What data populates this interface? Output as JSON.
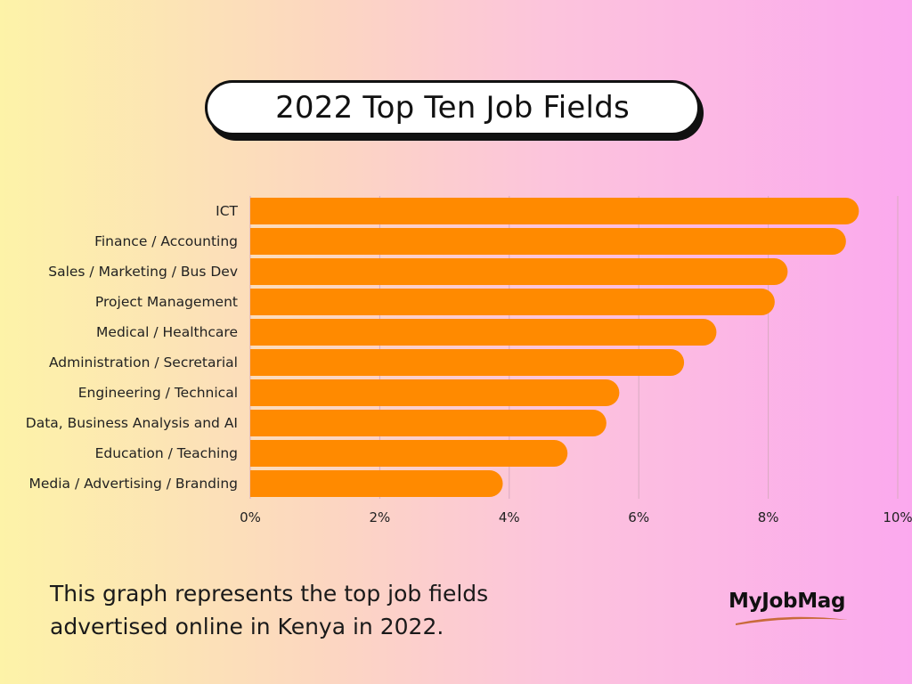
{
  "title": "2022 Top Ten Job Fields",
  "caption": "This graph represents the top job fields advertised online in Kenya in 2022.",
  "logo": {
    "text": "MyJobMag",
    "swoosh_color": "#c86a3a"
  },
  "colors": {
    "bar": "#ff8a00",
    "grid": "#d9aac0",
    "text": "#222222"
  },
  "chart_data": {
    "type": "bar",
    "orientation": "horizontal",
    "categories": [
      "ICT",
      "Finance / Accounting",
      "Sales / Marketing / Bus Dev",
      "Project Management",
      "Medical / Healthcare",
      "Administration / Secretarial",
      "Engineering / Technical",
      "Data, Business Analysis and AI",
      "Education / Teaching",
      "Media / Advertising / Branding"
    ],
    "values": [
      9.4,
      9.2,
      8.3,
      8.1,
      7.2,
      6.7,
      5.7,
      5.5,
      4.9,
      3.9
    ],
    "xlim": [
      0,
      10
    ],
    "xticks": [
      "0%",
      "2%",
      "4%",
      "6%",
      "8%",
      "10%"
    ],
    "grid": "vertical",
    "title": "2022 Top Ten Job Fields"
  }
}
